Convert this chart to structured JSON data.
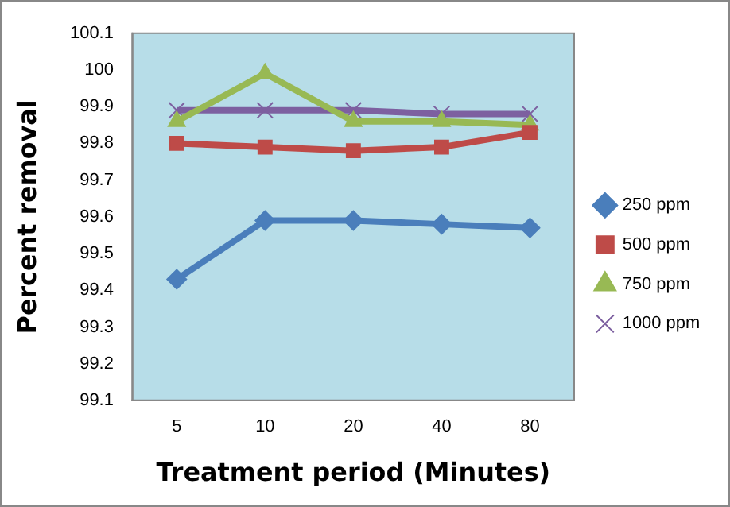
{
  "chart_data": {
    "type": "line",
    "xlabel": "Treatment period (Minutes)",
    "ylabel": "Percent removal",
    "categories": [
      "5",
      "10",
      "20",
      "40",
      "80"
    ],
    "series": [
      {
        "name": "250 ppm",
        "color": "#4a7ebb",
        "marker": "diamond",
        "values": [
          99.43,
          99.59,
          99.59,
          99.58,
          99.57
        ]
      },
      {
        "name": "500 ppm",
        "color": "#be4b48",
        "marker": "square",
        "values": [
          99.8,
          99.79,
          99.78,
          99.79,
          99.83
        ]
      },
      {
        "name": "750 ppm",
        "color": "#98b954",
        "marker": "triangle",
        "values": [
          99.86,
          99.99,
          99.86,
          99.86,
          99.85
        ]
      },
      {
        "name": "1000 ppm",
        "color": "#7d60a0",
        "marker": "cross",
        "values": [
          99.89,
          99.89,
          99.89,
          99.88,
          99.88
        ]
      }
    ],
    "ylim": [
      99.1,
      100.1
    ],
    "yticks": [
      99.1,
      99.2,
      99.3,
      99.4,
      99.5,
      99.6,
      99.7,
      99.8,
      99.9,
      100,
      100.1
    ],
    "grid": false,
    "legend": "right"
  }
}
